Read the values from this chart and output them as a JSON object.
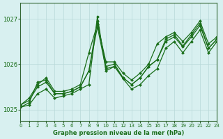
{
  "title": "Graphe pression niveau de la mer (hPa)",
  "bg_color": "#d8f0f0",
  "grid_color": "#b8d8d8",
  "line_color": "#1a6e1a",
  "marker_color": "#1a6e1a",
  "xlim": [
    0,
    23
  ],
  "ylim": [
    1024.75,
    1027.35
  ],
  "yticks": [
    1025,
    1026,
    1027
  ],
  "xticks": [
    0,
    1,
    2,
    3,
    4,
    5,
    6,
    7,
    8,
    9,
    10,
    11,
    12,
    13,
    14,
    15,
    16,
    17,
    18,
    19,
    20,
    21,
    22,
    23
  ],
  "series": [
    [
      1025.05,
      1025.15,
      1025.6,
      1025.65,
      1025.35,
      1025.35,
      1025.4,
      1025.5,
      1025.85,
      1026.95,
      1025.95,
      1026.0,
      1025.7,
      1025.55,
      1025.7,
      1025.95,
      1026.1,
      1026.55,
      1026.65,
      1026.4,
      1026.65,
      1026.9,
      1026.35,
      1026.55
    ],
    [
      1025.1,
      1025.25,
      1025.55,
      1025.7,
      1025.4,
      1025.4,
      1025.45,
      1025.55,
      1026.25,
      1026.88,
      1026.05,
      1026.05,
      1025.8,
      1025.65,
      1025.8,
      1026.0,
      1026.45,
      1026.6,
      1026.7,
      1026.5,
      1026.7,
      1026.95,
      1026.45,
      1026.6
    ],
    [
      1025.1,
      1025.2,
      1025.5,
      1025.6,
      1025.35,
      1025.35,
      1025.4,
      1025.5,
      1025.85,
      1026.82,
      1025.9,
      1025.95,
      1025.7,
      1025.55,
      1025.7,
      1025.95,
      1026.1,
      1026.5,
      1026.6,
      1026.38,
      1026.6,
      1026.85,
      1026.35,
      1026.55
    ],
    [
      1025.05,
      1025.1,
      1025.35,
      1025.45,
      1025.25,
      1025.3,
      1025.35,
      1025.45,
      1025.55,
      1027.05,
      1025.85,
      1025.95,
      1025.68,
      1025.45,
      1025.55,
      1025.75,
      1025.9,
      1026.35,
      1026.5,
      1026.25,
      1026.5,
      1026.75,
      1026.25,
      1026.5
    ]
  ]
}
